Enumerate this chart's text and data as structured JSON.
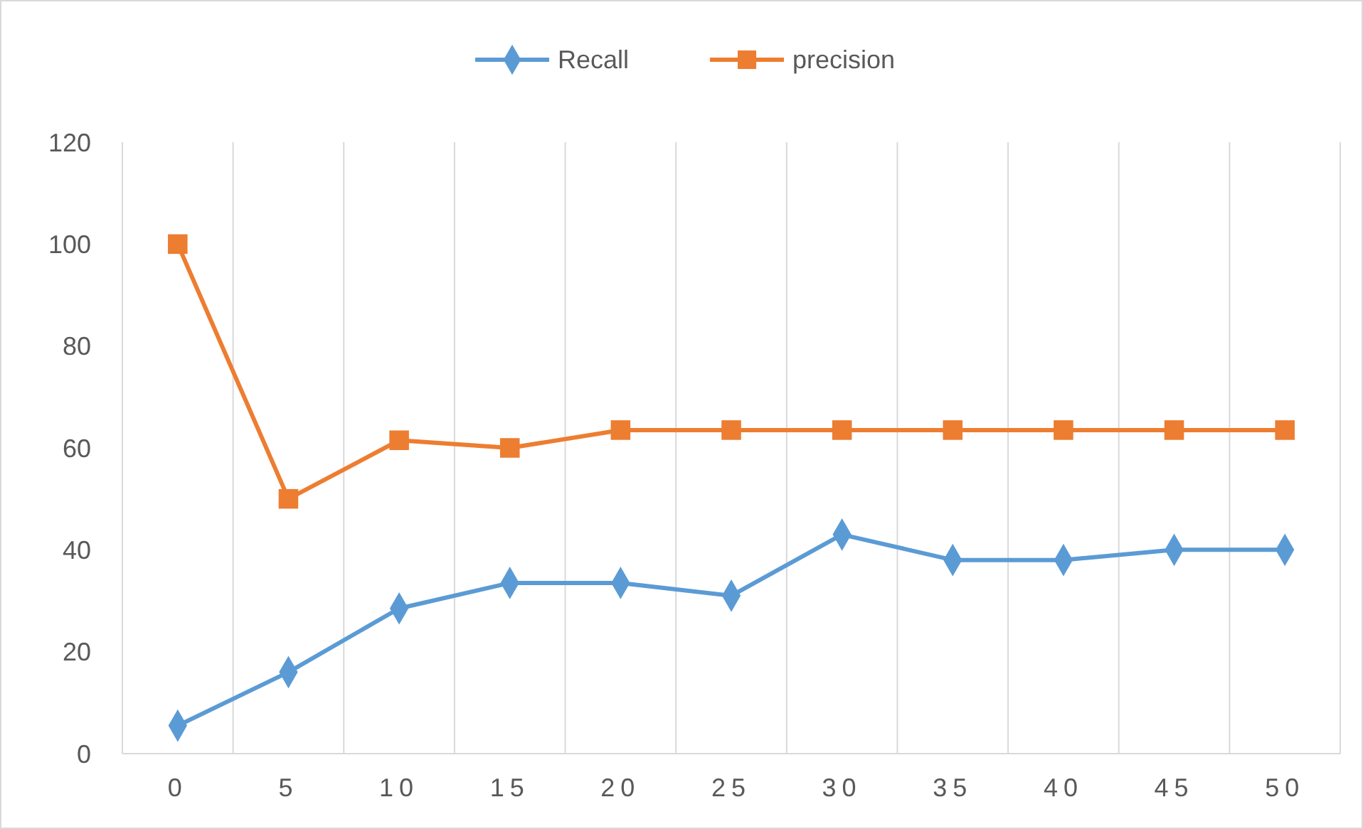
{
  "chart_data": {
    "type": "line",
    "categories": [
      "0",
      "5",
      "10",
      "15",
      "20",
      "25",
      "30",
      "35",
      "40",
      "45",
      "50"
    ],
    "series": [
      {
        "name": "Recall",
        "color": "#5b9bd5",
        "marker": "diamond",
        "values": [
          5.5,
          16,
          28.5,
          33.5,
          33.5,
          31,
          43,
          38,
          38,
          40,
          40
        ]
      },
      {
        "name": "precision",
        "color": "#ed7d31",
        "marker": "square",
        "values": [
          100,
          50,
          61.5,
          60,
          63.5,
          63.5,
          63.5,
          63.5,
          63.5,
          63.5,
          63.5
        ]
      }
    ],
    "ylim": [
      0,
      120
    ],
    "yticks": [
      0,
      20,
      40,
      60,
      80,
      100,
      120
    ],
    "grid": "x",
    "legend": "top"
  }
}
